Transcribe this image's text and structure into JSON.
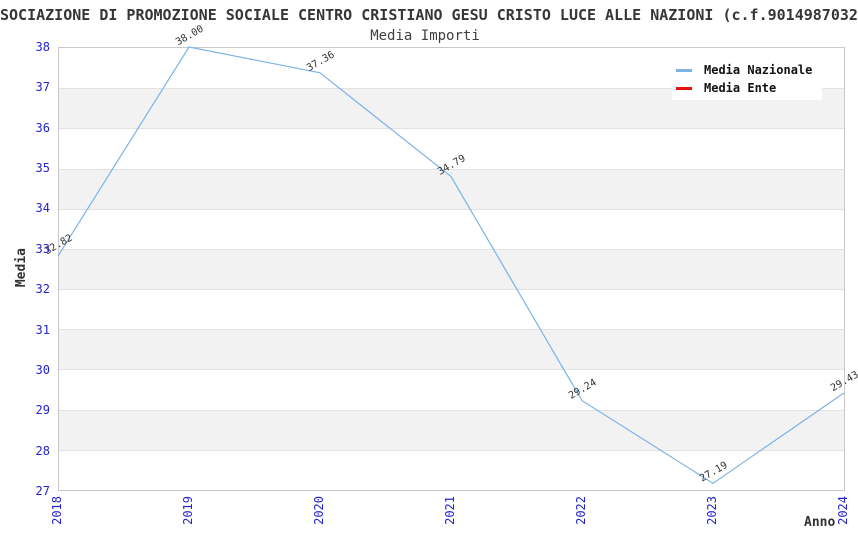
{
  "header": {
    "title": "SOCIAZIONE DI PROMOZIONE SOCIALE CENTRO CRISTIANO GESU CRISTO LUCE ALLE NAZIONI (c.f.9014987032",
    "subtitle": "Media Importi"
  },
  "legend": {
    "position": "top-right",
    "items": [
      {
        "label": "Media Nazionale",
        "color": "#7db3e6"
      },
      {
        "label": "Media Ente",
        "color": "#df1515"
      }
    ]
  },
  "chart_data": {
    "type": "line",
    "title": "Media Importi",
    "categories": [
      "2018",
      "2019",
      "2020",
      "2021",
      "2022",
      "2023",
      "2024"
    ],
    "series": [
      {
        "name": "Media Nazionale",
        "color": "#7db3e6",
        "values": [
          32.82,
          38.0,
          37.36,
          34.79,
          29.24,
          27.19,
          29.43
        ],
        "point_labels": [
          "32.82",
          "38.00",
          "37.36",
          "34.79",
          "29.24",
          "27.19",
          "29.43"
        ]
      },
      {
        "name": "Media Ente",
        "color": "#df1515",
        "values": [],
        "point_labels": []
      }
    ],
    "xlabel": "Anno",
    "ylabel": "Media",
    "ylim": [
      27,
      38
    ],
    "y_ticks": [
      27,
      28,
      29,
      30,
      31,
      32,
      33,
      34,
      35,
      36,
      37,
      38
    ],
    "grid": "horizontal alternating bands",
    "band_color": "#f2f2f2",
    "gridline_color": "#e2e2e2",
    "tick_label_color": "#2323cf",
    "legend_position": "top-right"
  }
}
